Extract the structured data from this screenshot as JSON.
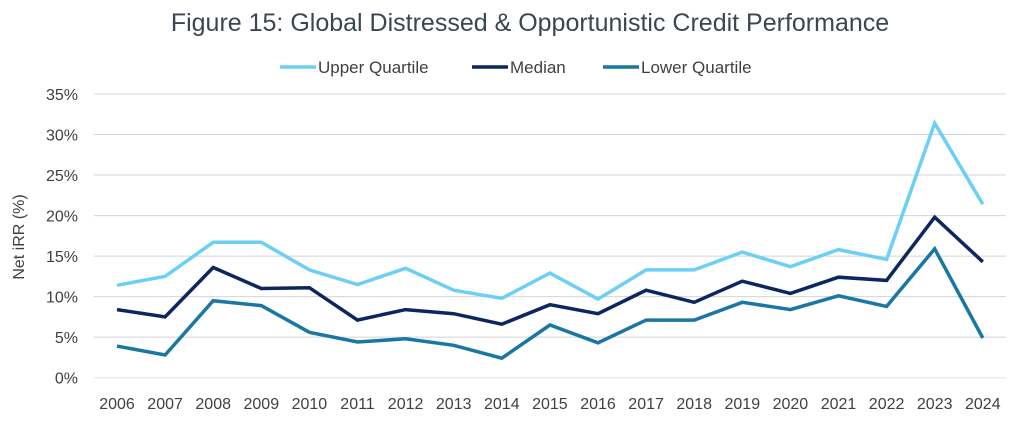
{
  "chart_data": {
    "type": "line",
    "title": "Figure 15: Global Distressed & Opportunistic Credit Performance",
    "xlabel": "",
    "ylabel": "Net iRR (%)",
    "ylim": [
      0,
      35
    ],
    "yticks": [
      "0%",
      "5%",
      "10%",
      "15%",
      "20%",
      "25%",
      "30%",
      "35%"
    ],
    "grid": true,
    "legend_position": "top",
    "categories": [
      "2006",
      "2007",
      "2008",
      "2009",
      "2010",
      "2011",
      "2012",
      "2013",
      "2014",
      "2015",
      "2016",
      "2017",
      "2018",
      "2019",
      "2020",
      "2021",
      "2022",
      "2023",
      "2024"
    ],
    "series": [
      {
        "name": "Upper Quartile",
        "color": "#6ccff6",
        "values": [
          11.4,
          12.5,
          16.7,
          16.7,
          13.3,
          11.5,
          13.5,
          10.8,
          9.8,
          12.9,
          9.7,
          13.3,
          13.3,
          15.5,
          13.7,
          15.8,
          14.6,
          31.4,
          21.4
        ]
      },
      {
        "name": "Median",
        "color": "#0c2660",
        "values": [
          8.4,
          7.5,
          13.6,
          11.0,
          11.1,
          7.1,
          8.4,
          7.9,
          6.6,
          9.0,
          7.9,
          10.8,
          9.3,
          11.9,
          10.4,
          12.4,
          12.0,
          19.8,
          14.3
        ]
      },
      {
        "name": "Lower Quartile",
        "color": "#1a76a2",
        "values": [
          3.9,
          2.8,
          9.5,
          8.9,
          5.6,
          4.4,
          4.8,
          4.0,
          2.4,
          6.5,
          4.3,
          7.1,
          7.1,
          9.3,
          8.4,
          10.1,
          8.8,
          15.9,
          4.9
        ]
      }
    ]
  }
}
